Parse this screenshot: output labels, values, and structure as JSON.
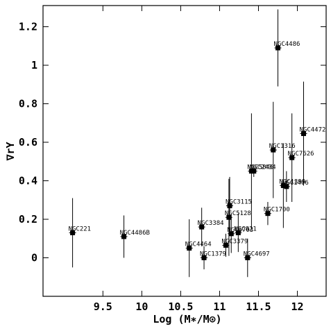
{
  "chart_data": {
    "type": "scatter",
    "xlabel": "Log (M∗/M⊙)",
    "ylabel": "∇rΥ",
    "xlim": [
      8.73,
      12.37
    ],
    "ylim": [
      -0.2,
      1.31
    ],
    "xticks": [
      9.5,
      10,
      10.5,
      11,
      11.5,
      12
    ],
    "yticks": [
      0,
      0.2,
      0.4,
      0.6,
      0.8,
      1,
      1.2
    ],
    "color": "#000000",
    "series": [
      {
        "x": [
          9.11,
          9.77,
          10.61,
          10.8,
          10.77,
          11.08,
          11.13,
          11.12,
          11.15,
          11.36,
          11.24,
          11.62,
          11.41,
          11.44,
          11.69,
          11.75,
          11.82,
          11.86,
          11.93,
          12.08
        ],
        "values": [
          0.13,
          0.11,
          0.05,
          0.0,
          0.16,
          0.065,
          0.27,
          0.21,
          0.125,
          0.0,
          0.13,
          0.23,
          0.45,
          0.45,
          0.56,
          1.09,
          0.375,
          0.37,
          0.52,
          0.645
        ],
        "errors": [
          0.18,
          0.11,
          0.15,
          0.06,
          0.1,
          0.06,
          0.15,
          0.2,
          0.1,
          0.1,
          0.1,
          0.06,
          0.3,
          0.03,
          0.25,
          0.2,
          0.22,
          0.08,
          0.23,
          0.27
        ],
        "labels": [
          "NGC221",
          "NGC4486B",
          "NGC4464",
          "NGC1379",
          "NGC3384",
          "NGC3379",
          "NGC3115",
          "NGC5128",
          "NGC6703",
          "NGC4697",
          "NGC821",
          "NGC1700",
          "NGC5846",
          "NGC2434",
          "NGC1316",
          "NGC4486",
          "NGC1399",
          "NGC1406",
          "NGC7626",
          "NGC4472"
        ]
      }
    ]
  }
}
